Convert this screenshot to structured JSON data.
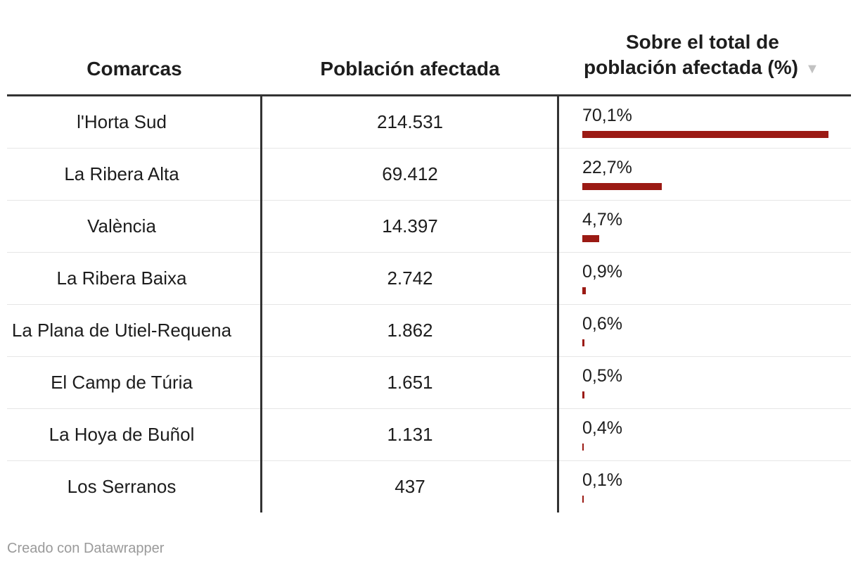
{
  "chart_data": {
    "type": "table",
    "columns": {
      "comarca": "Comarcas",
      "poblacion": "Población afectada",
      "pct_line1": "Sobre el total de",
      "pct_line2": "población afectada (%)"
    },
    "sort_icon": "sort-descending-icon",
    "bar_color": "#9b1a14",
    "bar_max": 70.1,
    "rows": [
      {
        "comarca": "l'Horta Sud",
        "poblacion": "214.531",
        "pct_label": "70,1%",
        "pct": 70.1
      },
      {
        "comarca": "La Ribera Alta",
        "poblacion": "69.412",
        "pct_label": "22,7%",
        "pct": 22.7
      },
      {
        "comarca": "València",
        "poblacion": "14.397",
        "pct_label": "4,7%",
        "pct": 4.7
      },
      {
        "comarca": "La Ribera Baixa",
        "poblacion": "2.742",
        "pct_label": "0,9%",
        "pct": 0.9
      },
      {
        "comarca": "La Plana de Utiel-Requena",
        "poblacion": "1.862",
        "pct_label": "0,6%",
        "pct": 0.6
      },
      {
        "comarca": "El Camp de Túria",
        "poblacion": "1.651",
        "pct_label": "0,5%",
        "pct": 0.5
      },
      {
        "comarca": "La Hoya de Buñol",
        "poblacion": "1.131",
        "pct_label": "0,4%",
        "pct": 0.4
      },
      {
        "comarca": "Los Serranos",
        "poblacion": "437",
        "pct_label": "0,1%",
        "pct": 0.1
      }
    ]
  },
  "footer": {
    "credit": "Creado con Datawrapper"
  }
}
